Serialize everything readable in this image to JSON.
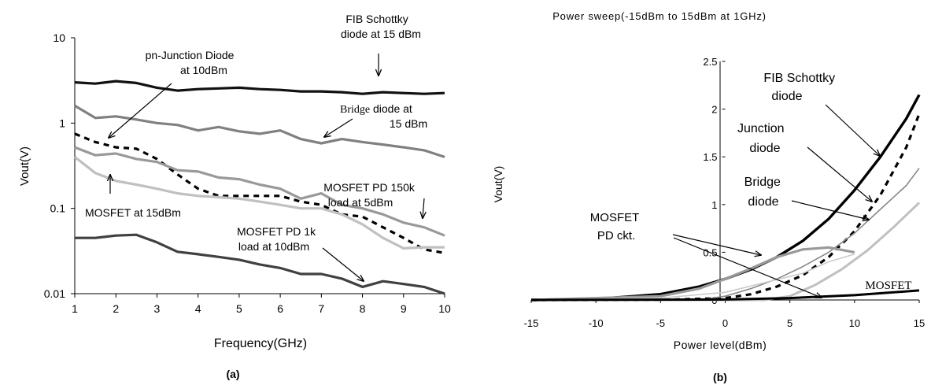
{
  "chart_data": [
    {
      "id": "a",
      "type": "line",
      "panel_label": "(a)",
      "title": "",
      "xlabel": "Frequency(GHz)",
      "ylabel": "Vout(V)",
      "xlim": [
        1,
        10
      ],
      "ylim": [
        0.01,
        10
      ],
      "yscale": "log",
      "grid": false,
      "x_ticks": [
        "1",
        "2",
        "3",
        "4",
        "5",
        "6",
        "7",
        "8",
        "9",
        "10"
      ],
      "y_ticks": [
        "0.01",
        "0.1",
        "1",
        "10"
      ],
      "x": [
        1,
        1.5,
        2,
        2.5,
        3,
        3.5,
        4,
        4.5,
        5,
        5.5,
        6,
        6.5,
        7,
        7.5,
        8,
        8.5,
        9,
        9.5,
        10
      ],
      "series": [
        {
          "key": "fib",
          "color": "#111111",
          "dash": "solid",
          "values": [
            3.0,
            2.9,
            3.1,
            2.95,
            2.6,
            2.4,
            2.5,
            2.55,
            2.6,
            2.5,
            2.45,
            2.35,
            2.35,
            2.3,
            2.2,
            2.3,
            2.25,
            2.2,
            2.25
          ]
        },
        {
          "key": "bridge",
          "color": "#808080",
          "dash": "solid",
          "values": [
            1.6,
            1.15,
            1.2,
            1.1,
            1.0,
            0.95,
            0.82,
            0.9,
            0.8,
            0.75,
            0.82,
            0.65,
            0.58,
            0.65,
            0.6,
            0.56,
            0.52,
            0.48,
            0.4
          ]
        },
        {
          "key": "pn",
          "color": "#000000",
          "dash": "dashed",
          "values": [
            0.75,
            0.6,
            0.52,
            0.5,
            0.38,
            0.25,
            0.17,
            0.14,
            0.14,
            0.14,
            0.14,
            0.12,
            0.11,
            0.085,
            0.08,
            0.06,
            0.045,
            0.033,
            0.03
          ]
        },
        {
          "key": "mosfet150k",
          "color": "#999999",
          "dash": "solid",
          "values": [
            0.52,
            0.42,
            0.44,
            0.38,
            0.35,
            0.28,
            0.27,
            0.23,
            0.22,
            0.19,
            0.17,
            0.13,
            0.15,
            0.11,
            0.1,
            0.085,
            0.068,
            0.06,
            0.048
          ]
        },
        {
          "key": "mosfet15",
          "color": "#c0c0c0",
          "dash": "solid",
          "values": [
            0.4,
            0.26,
            0.21,
            0.19,
            0.17,
            0.15,
            0.14,
            0.135,
            0.13,
            0.12,
            0.11,
            0.1,
            0.1,
            0.085,
            0.065,
            0.045,
            0.034,
            0.035,
            0.035
          ]
        },
        {
          "key": "mosfet1k",
          "color": "#404040",
          "dash": "solid",
          "values": [
            0.045,
            0.045,
            0.048,
            0.049,
            0.04,
            0.031,
            0.029,
            0.027,
            0.025,
            0.022,
            0.02,
            0.017,
            0.017,
            0.015,
            0.012,
            0.014,
            0.013,
            0.012,
            0.01
          ]
        }
      ],
      "annotations": [
        {
          "lines": [
            "FIB Schottky",
            "diode  at 15 dBm"
          ],
          "font": "sans"
        },
        {
          "lines": [
            "pn-Junction Diode",
            "at 10dBm"
          ],
          "font": "sans"
        },
        {
          "lines": [
            "Bridge",
            " diode at",
            "15 dBm"
          ],
          "font": "mixed"
        },
        {
          "lines": [
            "MOSFET PD 150k",
            "load at 5dBm"
          ],
          "font": "sans"
        },
        {
          "lines": [
            "MOSFET at 15dBm"
          ],
          "font": "sans"
        },
        {
          "lines": [
            "MOSFET PD 1k",
            "load at 10dBm"
          ],
          "font": "sans"
        }
      ]
    },
    {
      "id": "b",
      "type": "line",
      "panel_label": "(b)",
      "title": "Power sweep(-15dBm to 15dBm at 1GHz)",
      "xlabel": "Power level(dBm)",
      "ylabel": "Vout(V)",
      "xlim": [
        -15,
        15
      ],
      "ylim": [
        0,
        2.5
      ],
      "grid": false,
      "x_ticks": [
        "-15",
        "-10",
        "-5",
        "0",
        "5",
        "10",
        "15"
      ],
      "y_ticks": [
        "0",
        "0.5",
        "1",
        "1.5",
        "2",
        "2.5"
      ],
      "series": [
        {
          "key": "fib",
          "color": "#000000",
          "dash": "solid",
          "x": [
            -15,
            -10,
            -5,
            -2,
            0,
            2,
            4,
            6,
            8,
            10,
            12,
            14,
            15
          ],
          "y": [
            0.0,
            0.01,
            0.06,
            0.14,
            0.22,
            0.32,
            0.45,
            0.62,
            0.85,
            1.15,
            1.5,
            1.9,
            2.15
          ]
        },
        {
          "key": "junction",
          "color": "#000000",
          "dash": "dashed",
          "x": [
            -15,
            -5,
            0,
            2,
            4,
            6,
            8,
            10,
            12,
            14,
            15
          ],
          "y": [
            0.0,
            0.0,
            0.02,
            0.06,
            0.14,
            0.26,
            0.45,
            0.72,
            1.1,
            1.6,
            1.95
          ]
        },
        {
          "key": "bridge",
          "color": "#888888",
          "dash": "solid",
          "x": [
            -15,
            -2,
            0,
            2,
            4,
            6,
            8,
            10,
            12,
            14,
            15
          ],
          "y": [
            0.0,
            0.0,
            0.04,
            0.12,
            0.22,
            0.35,
            0.5,
            0.7,
            0.95,
            1.2,
            1.38
          ]
        },
        {
          "key": "mosfet_pd",
          "color": "#999999",
          "dash": "solid",
          "x": [
            -15,
            -5,
            -2,
            0,
            2,
            4,
            6,
            8,
            10
          ],
          "y": [
            0.0,
            0.04,
            0.12,
            0.22,
            0.33,
            0.45,
            0.53,
            0.55,
            0.5
          ]
        },
        {
          "key": "mosfet_pd_b",
          "color": "#cccccc",
          "dash": "solid",
          "x": [
            -15,
            -5,
            0,
            3,
            6,
            8,
            10
          ],
          "y": [
            0.0,
            0.02,
            0.08,
            0.18,
            0.28,
            0.4,
            0.48
          ]
        },
        {
          "key": "mosfet",
          "color": "#c0c0c0",
          "dash": "solid",
          "x": [
            -15,
            3,
            5,
            7,
            9,
            11,
            13,
            15
          ],
          "y": [
            0.0,
            0.0,
            0.04,
            0.16,
            0.32,
            0.52,
            0.76,
            1.02
          ]
        },
        {
          "key": "mosfet_dark",
          "color": "#000000",
          "dash": "solid",
          "x": [
            -15,
            0,
            5,
            10,
            15
          ],
          "y": [
            0.0,
            0.005,
            0.02,
            0.05,
            0.1
          ]
        }
      ],
      "annotations": [
        {
          "lines": [
            "FIB Schottky",
            "diode"
          ],
          "font": "sans"
        },
        {
          "lines": [
            "Junction",
            "diode"
          ],
          "font": "sans"
        },
        {
          "lines": [
            "Bridge",
            "diode"
          ],
          "font": "sans"
        },
        {
          "lines": [
            "MOSFET",
            "PD ckt."
          ],
          "font": "sans"
        },
        {
          "lines": [
            "MOSFET"
          ],
          "font": "serif"
        }
      ]
    }
  ]
}
